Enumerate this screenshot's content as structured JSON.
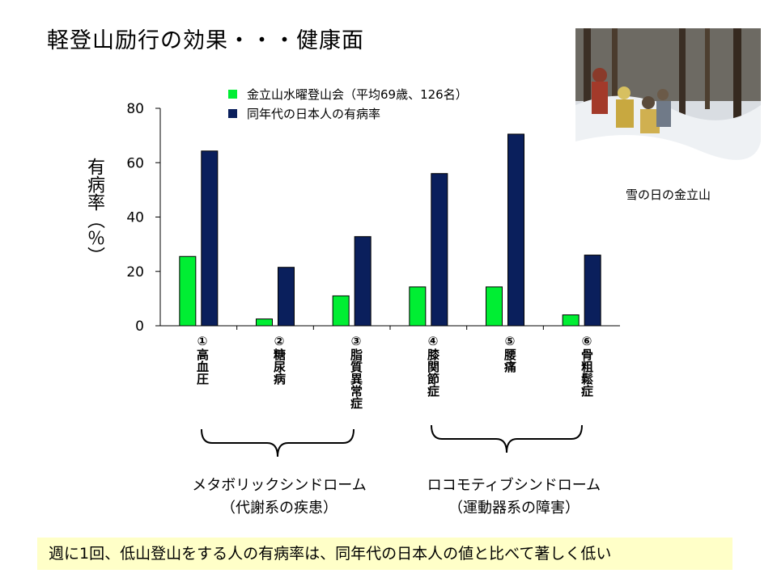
{
  "slide": {
    "title": "軽登山励行の効果・・・健康面",
    "photo_caption": "雪の日の金立山",
    "y_axis_label": "有病率（％）",
    "conclusion": "週に1回、低山登山をする人の有病率は、同年代の日本人の値と比べて著しく低い"
  },
  "groups": [
    {
      "line1": "メタボリックシンドローム",
      "line2": "（代謝系の疾患）"
    },
    {
      "line1": "ロコモティブシンドローム",
      "line2": "（運動器系の障害）"
    }
  ],
  "colors": {
    "series1": "#00ee33",
    "series2": "#0a1f5c"
  },
  "chart_data": {
    "type": "bar",
    "categories": [
      "①高血圧",
      "②糖尿病",
      "③脂質異常症",
      "④膝関節症",
      "⑤腰痛",
      "⑥骨粗鬆症"
    ],
    "series": [
      {
        "name": "金立山水曜登山会（平均69歳、126名）",
        "values": [
          25.5,
          2.5,
          11,
          14.3,
          14.3,
          4
        ]
      },
      {
        "name": "同年代の日本人の有病率",
        "values": [
          64.3,
          21.5,
          32.8,
          56,
          70.5,
          26
        ]
      }
    ],
    "y_ticks": [
      0,
      20,
      40,
      60,
      80
    ],
    "ylim": [
      0,
      80
    ],
    "ylabel": "有病率（％）",
    "grid": false,
    "legend_position": "top-left"
  }
}
